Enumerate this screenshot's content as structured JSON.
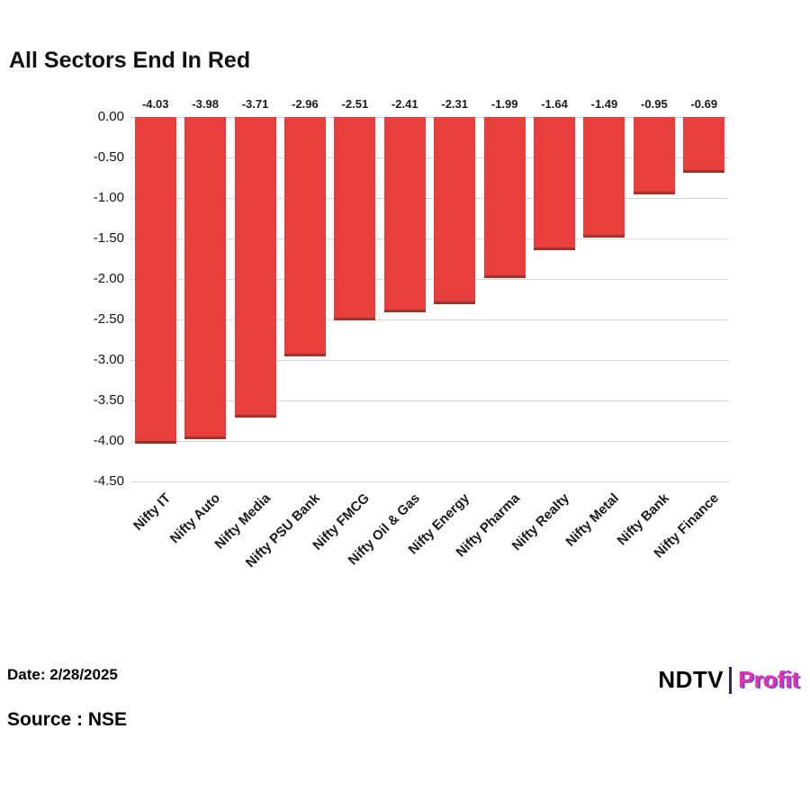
{
  "footer": {
    "date_label": "Date: 2/28/2025",
    "source_label": "Source : NSE"
  },
  "logo": {
    "ndtv": "NDTV",
    "profit": "Profit"
  },
  "colors": {
    "bar": "#E83E3E",
    "bar_edge": "#9C3529",
    "grid": "#D9D9D9",
    "profit_pink": "#EE2DB0",
    "profit_shadow": "#4F5BD5"
  },
  "chart_data": {
    "type": "bar",
    "title": "All Sectors End In Red",
    "categories": [
      "Nifty IT",
      "Nifty Auto",
      "Nifty Media",
      "Nifty PSU Bank",
      "Nifty FMCG",
      "Nifty Oil & Gas",
      "Nifty Energy",
      "Nifty Pharma",
      "Nifty Realty",
      "Nifty Metal",
      "Nifty Bank",
      "Nifty Finance"
    ],
    "values": [
      -4.03,
      -3.98,
      -3.71,
      -2.96,
      -2.51,
      -2.41,
      -2.31,
      -1.99,
      -1.64,
      -1.49,
      -0.95,
      -0.69
    ],
    "value_labels": [
      "-4.03",
      "-3.98",
      "-3.71",
      "-2.96",
      "-2.51",
      "-2.41",
      "-2.31",
      "-1.99",
      "-1.64",
      "-1.49",
      "-0.95",
      "-0.69"
    ],
    "xlabel": "",
    "ylabel": "",
    "ylim": [
      -4.5,
      0
    ],
    "yticks": [
      "0.00",
      "-0.50",
      "-1.00",
      "-1.50",
      "-2.00",
      "-2.50",
      "-3.00",
      "-3.50",
      "-4.00",
      "-4.50"
    ],
    "grid": true,
    "legend": false
  }
}
